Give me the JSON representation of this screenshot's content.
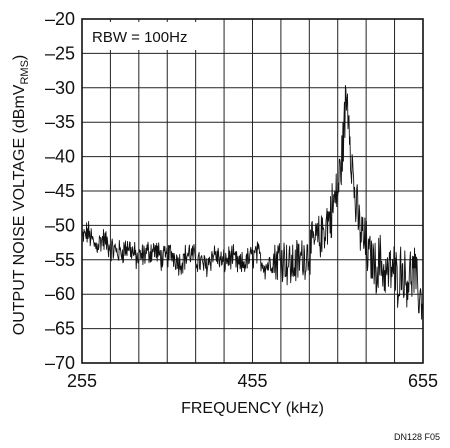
{
  "chart_data": {
    "type": "line",
    "xlabel": "FREQUENCY (kHz)",
    "ylabel_main": "OUTPUT NOISE VOLTAGE (dBmV",
    "ylabel_sub": "RMS",
    "ylabel_end": ")",
    "annotation": "RBW = 100Hz",
    "footnote": "DN128 F05",
    "xlim": [
      255,
      655
    ],
    "ylim": [
      -70,
      -20
    ],
    "x_ticks": [
      255,
      455,
      655
    ],
    "x_tick_labels": [
      "255",
      "455",
      "655"
    ],
    "x_grid_step": 33.33,
    "y_ticks": [
      -70,
      -65,
      -60,
      -55,
      -50,
      -45,
      -40,
      -35,
      -30,
      -25,
      -20
    ],
    "y_tick_labels": [
      "–70",
      "–65",
      "–60",
      "–55",
      "–50",
      "–45",
      "–40",
      "–35",
      "–30",
      "–25",
      "–20"
    ],
    "grid": true,
    "series": [
      {
        "x": [
          255,
          262,
          270,
          280,
          290,
          300,
          310,
          320,
          330,
          340,
          350,
          360,
          370,
          380,
          390,
          400,
          410,
          420,
          430,
          440,
          450,
          460,
          470,
          480,
          490,
          500,
          510,
          520,
          525,
          530,
          535,
          540,
          545,
          550,
          555,
          560,
          563,
          565,
          568,
          570,
          573,
          576,
          580,
          585,
          590,
          595,
          600,
          605,
          610,
          615,
          620,
          625,
          630,
          635,
          640,
          645,
          650,
          655
        ],
        "y": [
          -52,
          -51,
          -53,
          -52,
          -53.5,
          -54,
          -53,
          -55,
          -54,
          -53.5,
          -55,
          -54,
          -55.5,
          -54,
          -55,
          -56,
          -54,
          -55.5,
          -54.5,
          -56,
          -55,
          -54,
          -56,
          -55,
          -54.5,
          -56,
          -55,
          -54,
          -53,
          -52,
          -52,
          -50,
          -49,
          -47,
          -45,
          -40,
          -35,
          -31,
          -33,
          -38,
          -43,
          -47,
          -50,
          -52,
          -54,
          -55,
          -56,
          -55,
          -57,
          -57,
          -56,
          -58,
          -56,
          -58,
          -57,
          -57,
          -60,
          -61
        ]
      }
    ]
  }
}
